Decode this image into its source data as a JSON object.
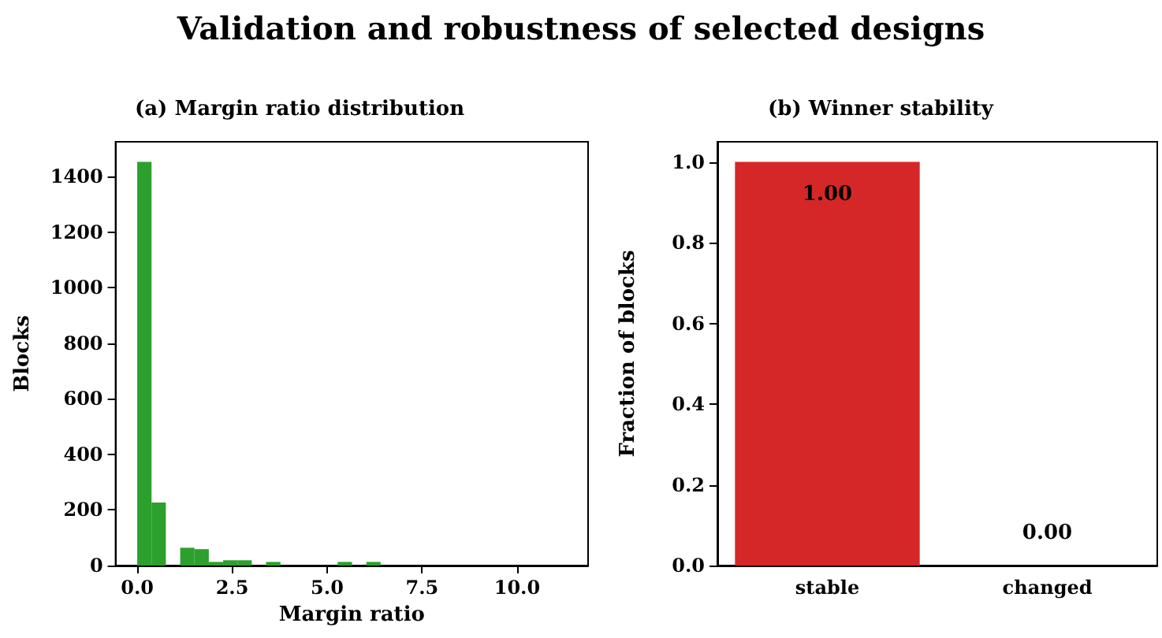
{
  "chart_data": [
    {
      "type": "histogram",
      "title": "(a) Margin ratio distribution",
      "xlabel": "Margin ratio",
      "ylabel": "Blocks",
      "annotations": [
        "Validation and robustness of selected designs"
      ],
      "bins": [
        0,
        0.377,
        0.754,
        1.131,
        1.508,
        1.885,
        2.262,
        2.639,
        3.016,
        3.393,
        3.77,
        4.147,
        4.524,
        4.901,
        5.278,
        5.655,
        6.032,
        6.409,
        6.786,
        7.163,
        7.54,
        7.917,
        8.294,
        8.671,
        9.048,
        9.425,
        9.802,
        10.179,
        10.556,
        10.933,
        11.31
      ],
      "values": [
        1453,
        227,
        0,
        64,
        59,
        13,
        19,
        19,
        0,
        13,
        0,
        0,
        0,
        0,
        13,
        0,
        13,
        0,
        0,
        0,
        0,
        0,
        0,
        0,
        0,
        0,
        0,
        0,
        0,
        0
      ],
      "color": "#2ca02c",
      "xlim": [
        -0.57,
        11.87
      ],
      "ylim": [
        0,
        1525
      ],
      "xticks": [
        {
          "value": 0,
          "label": "0.0"
        },
        {
          "value": 2.5,
          "label": "2.5"
        },
        {
          "value": 5,
          "label": "5.0"
        },
        {
          "value": 7.5,
          "label": "7.5"
        },
        {
          "value": 10,
          "label": "10.0"
        }
      ],
      "yticks": [
        0,
        200,
        400,
        600,
        800,
        1000,
        1200,
        1400
      ],
      "grid": false
    },
    {
      "type": "bar",
      "title": "(b) Winner stability",
      "ylabel": "Fraction of blocks",
      "categories": [
        "stable",
        "changed"
      ],
      "values": [
        1.0,
        0.0
      ],
      "value_labels": [
        "1.00",
        "0.00"
      ],
      "colors": [
        "#d62728",
        "#d62728"
      ],
      "ylim": [
        0,
        1.05
      ],
      "yticks": [
        {
          "value": 0,
          "label": "0.0"
        },
        {
          "value": 0.2,
          "label": "0.2"
        },
        {
          "value": 0.4,
          "label": "0.4"
        },
        {
          "value": 0.6,
          "label": "0.6"
        },
        {
          "value": 0.8,
          "label": "0.8"
        },
        {
          "value": 1.0,
          "label": "1.0"
        }
      ],
      "grid": false
    }
  ]
}
